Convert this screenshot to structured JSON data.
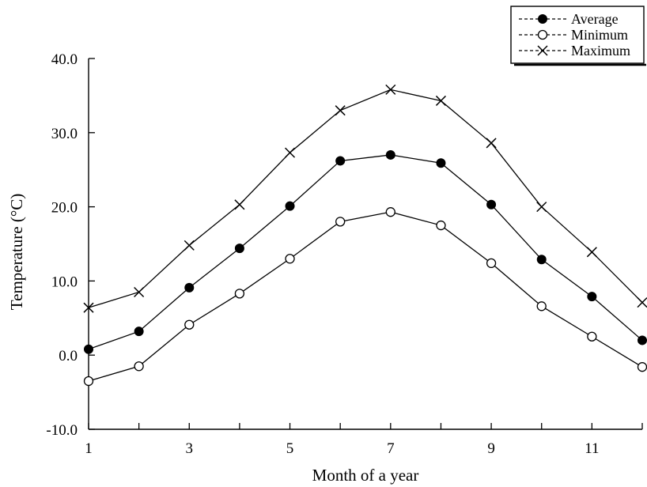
{
  "chart_data": {
    "type": "line",
    "xlabel": "Month of a year",
    "ylabel": "Temperature (°C)",
    "xlim": [
      1,
      12
    ],
    "ylim": [
      -10,
      40
    ],
    "x": [
      1,
      2,
      3,
      4,
      5,
      6,
      7,
      8,
      9,
      10,
      11,
      12
    ],
    "x_ticks": [
      1,
      3,
      5,
      7,
      9,
      11
    ],
    "x_tick_labels": [
      "1",
      "3",
      "5",
      "7",
      "9",
      "11"
    ],
    "y_ticks": [
      -10,
      0,
      10,
      20,
      30,
      40
    ],
    "y_tick_labels": [
      "-10.0",
      "0.0",
      "10.0",
      "20.0",
      "30.0",
      "40.0"
    ],
    "grid": false,
    "legend_position": "top-right",
    "series": [
      {
        "name": "Average",
        "marker": "filled-circle",
        "values": [
          0.8,
          3.2,
          9.1,
          14.4,
          20.1,
          26.2,
          27.0,
          25.9,
          20.3,
          12.9,
          7.9,
          2.0
        ]
      },
      {
        "name": "Minimum",
        "marker": "open-circle",
        "values": [
          -3.5,
          -1.5,
          4.1,
          8.3,
          13.0,
          18.0,
          19.3,
          17.5,
          12.4,
          6.6,
          2.5,
          -1.6
        ]
      },
      {
        "name": "Maximum",
        "marker": "cross",
        "values": [
          6.4,
          8.5,
          14.8,
          20.3,
          27.3,
          33.0,
          35.8,
          34.3,
          28.6,
          20.0,
          13.9,
          7.1
        ]
      }
    ],
    "colors": {
      "line": "#000000",
      "background": "#ffffff"
    }
  }
}
